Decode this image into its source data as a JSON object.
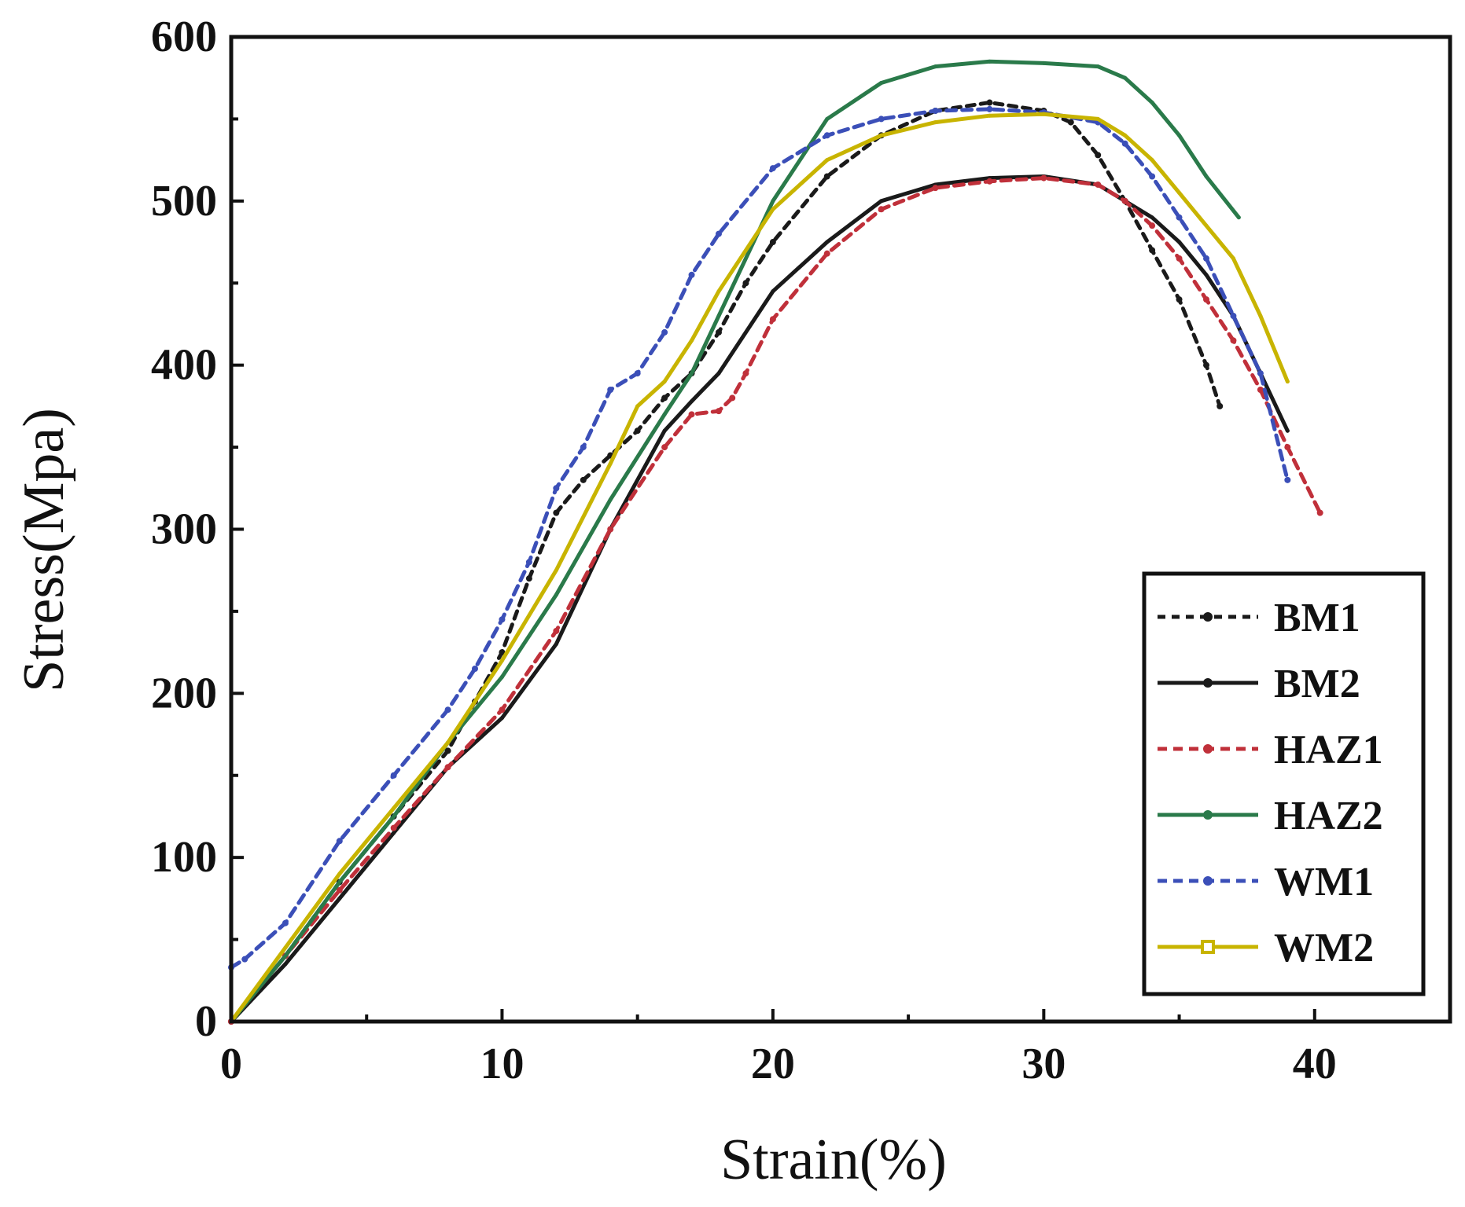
{
  "chart_data": {
    "type": "line",
    "title": "",
    "xlabel": "Strain(%)",
    "ylabel": "Stress(Mpa)",
    "xlim": [
      0,
      45
    ],
    "ylim": [
      0,
      600
    ],
    "xticks": [
      0,
      10,
      20,
      30,
      40
    ],
    "yticks": [
      0,
      100,
      200,
      300,
      400,
      500,
      600
    ],
    "legend_position": "bottom-right",
    "series": [
      {
        "name": "BM1",
        "color": "#1a1a1a",
        "dash": "10 8",
        "marker": "dot",
        "x": [
          0,
          2,
          4,
          6,
          8,
          9,
          10,
          11,
          12,
          13,
          14,
          15,
          16,
          17,
          18,
          19,
          20,
          22,
          24,
          26,
          28,
          30,
          31,
          32,
          33,
          34,
          35,
          36,
          36.5
        ],
        "y": [
          0,
          40,
          85,
          125,
          165,
          195,
          225,
          270,
          310,
          330,
          345,
          360,
          380,
          395,
          420,
          450,
          475,
          515,
          540,
          555,
          560,
          555,
          548,
          528,
          500,
          470,
          440,
          400,
          375
        ]
      },
      {
        "name": "BM2",
        "color": "#1a1a1a",
        "dash": "",
        "marker": "tick",
        "x": [
          0,
          2,
          4,
          6,
          8,
          10,
          12,
          14,
          16,
          17,
          18,
          20,
          22,
          24,
          26,
          28,
          30,
          32,
          33,
          34,
          35,
          36,
          37,
          38,
          39
        ],
        "y": [
          0,
          35,
          75,
          115,
          155,
          185,
          230,
          300,
          360,
          378,
          395,
          445,
          475,
          500,
          510,
          514,
          515,
          510,
          500,
          490,
          475,
          455,
          430,
          395,
          360
        ]
      },
      {
        "name": "HAZ1",
        "color": "#c0303a",
        "dash": "12 8",
        "marker": "dot",
        "x": [
          0,
          2,
          4,
          6,
          8,
          10,
          12,
          14,
          16,
          17,
          18,
          18.5,
          19,
          20,
          22,
          24,
          26,
          28,
          30,
          32,
          33,
          34,
          35,
          36,
          37,
          38,
          39,
          40.2
        ],
        "y": [
          0,
          40,
          80,
          118,
          155,
          190,
          238,
          300,
          350,
          370,
          372,
          380,
          395,
          428,
          468,
          495,
          508,
          512,
          514,
          510,
          500,
          485,
          465,
          440,
          415,
          385,
          350,
          310
        ]
      },
      {
        "name": "HAZ2",
        "color": "#2a7a4a",
        "dash": "",
        "marker": "tick",
        "x": [
          0,
          2,
          4,
          6,
          8,
          10,
          12,
          14,
          16,
          17,
          18,
          20,
          22,
          24,
          26,
          28,
          30,
          32,
          33,
          34,
          35,
          36,
          37.2
        ],
        "y": [
          0,
          40,
          85,
          125,
          170,
          210,
          260,
          318,
          370,
          395,
          430,
          500,
          550,
          572,
          582,
          585,
          584,
          582,
          575,
          560,
          540,
          515,
          490
        ]
      },
      {
        "name": "WM1",
        "color": "#3b4fb8",
        "dash": "12 8",
        "marker": "dot",
        "x": [
          0,
          0.5,
          2,
          4,
          6,
          8,
          9,
          10,
          11,
          12,
          13,
          14,
          15,
          16,
          17,
          18,
          20,
          22,
          24,
          26,
          28,
          30,
          32,
          33,
          34,
          35,
          36,
          37,
          38,
          39
        ],
        "y": [
          33,
          38,
          60,
          110,
          150,
          190,
          215,
          245,
          280,
          325,
          350,
          385,
          395,
          420,
          455,
          480,
          520,
          540,
          550,
          555,
          556,
          554,
          548,
          535,
          515,
          490,
          465,
          430,
          395,
          330
        ]
      },
      {
        "name": "WM2",
        "color": "#c8b400",
        "dash": "",
        "marker": "square",
        "x": [
          0,
          2,
          4,
          6,
          8,
          10,
          12,
          14,
          15,
          16,
          17,
          18,
          20,
          22,
          24,
          26,
          28,
          30,
          32,
          33,
          34,
          35,
          36,
          37,
          38,
          39
        ],
        "y": [
          0,
          45,
          90,
          130,
          170,
          220,
          275,
          340,
          375,
          390,
          415,
          445,
          495,
          525,
          540,
          548,
          552,
          553,
          550,
          540,
          525,
          505,
          485,
          465,
          430,
          390
        ]
      }
    ]
  }
}
